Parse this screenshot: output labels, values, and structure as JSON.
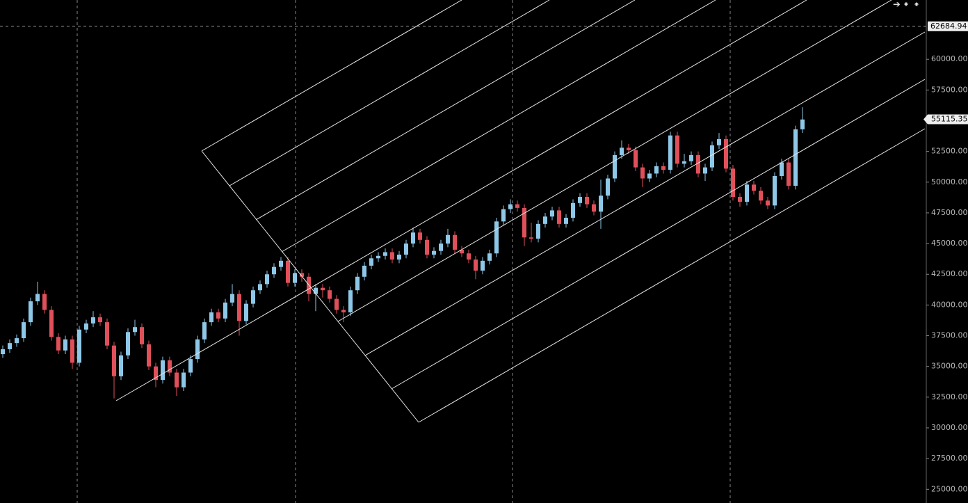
{
  "chart_data": {
    "type": "candlestick",
    "up_color": "#8ec8e8",
    "down_color": "#e0505a",
    "ylim": [
      23884,
      64825
    ],
    "yticks": [
      {
        "value": 25000,
        "label": "25000.00"
      },
      {
        "value": 27500,
        "label": "27500.00"
      },
      {
        "value": 30000,
        "label": "30000.00"
      },
      {
        "value": 32500,
        "label": "32500.00"
      },
      {
        "value": 35000,
        "label": "35000.00"
      },
      {
        "value": 37500,
        "label": "37500.00"
      },
      {
        "value": 40000,
        "label": "40000.00"
      },
      {
        "value": 42500,
        "label": "42500.00"
      },
      {
        "value": 45000,
        "label": "45000.00"
      },
      {
        "value": 47500,
        "label": "47500.00"
      },
      {
        "value": 50000,
        "label": "50000.00"
      },
      {
        "value": 52500,
        "label": "52500.00"
      },
      {
        "value": 55000,
        "label": "55000.00"
      },
      {
        "value": 57500,
        "label": "57500.00"
      },
      {
        "value": 60000,
        "label": "60000.00"
      }
    ],
    "crosshair_price": 62684.94,
    "last_price": 55115.35,
    "ohlc": [
      [
        36000,
        36700,
        35700,
        36400
      ],
      [
        36400,
        37200,
        36100,
        36900
      ],
      [
        36900,
        37600,
        36600,
        37300
      ],
      [
        37300,
        38900,
        37000,
        38600
      ],
      [
        38600,
        40600,
        38300,
        40300
      ],
      [
        40300,
        41900,
        40000,
        40900
      ],
      [
        40900,
        41200,
        39300,
        39600
      ],
      [
        39600,
        39900,
        37100,
        37400
      ],
      [
        37400,
        37700,
        36000,
        36300
      ],
      [
        36300,
        37500,
        36000,
        37200
      ],
      [
        37200,
        37500,
        34800,
        35300
      ],
      [
        35300,
        38300,
        35000,
        38000
      ],
      [
        38000,
        38800,
        37700,
        38500
      ],
      [
        38500,
        39500,
        38200,
        39000
      ],
      [
        39000,
        39300,
        38300,
        38600
      ],
      [
        38600,
        38900,
        36400,
        36700
      ],
      [
        36700,
        37000,
        32400,
        34200
      ],
      [
        34200,
        36200,
        33900,
        35900
      ],
      [
        35900,
        38100,
        35600,
        37800
      ],
      [
        37800,
        38800,
        37500,
        38200
      ],
      [
        38200,
        38500,
        36500,
        36800
      ],
      [
        36800,
        37100,
        34700,
        35000
      ],
      [
        35000,
        35300,
        33300,
        33900
      ],
      [
        33900,
        35800,
        33600,
        35500
      ],
      [
        35500,
        35800,
        34200,
        34500
      ],
      [
        34500,
        34800,
        32600,
        33300
      ],
      [
        33300,
        34800,
        33000,
        34500
      ],
      [
        34500,
        35900,
        34200,
        35600
      ],
      [
        35600,
        37500,
        35300,
        37200
      ],
      [
        37200,
        38900,
        36900,
        38600
      ],
      [
        38600,
        39700,
        38300,
        39400
      ],
      [
        39400,
        39700,
        38600,
        38900
      ],
      [
        38900,
        40500,
        38600,
        40200
      ],
      [
        40200,
        41700,
        39900,
        40900
      ],
      [
        40900,
        41200,
        37500,
        38700
      ],
      [
        38700,
        40400,
        38400,
        40100
      ],
      [
        40100,
        41500,
        39800,
        41200
      ],
      [
        41200,
        42000,
        40900,
        41700
      ],
      [
        41700,
        42800,
        41400,
        42500
      ],
      [
        42500,
        43400,
        42200,
        43100
      ],
      [
        43100,
        43900,
        42800,
        43600
      ],
      [
        43600,
        43900,
        41500,
        41800
      ],
      [
        41800,
        42900,
        41500,
        42600
      ],
      [
        42600,
        42900,
        41900,
        42300
      ],
      [
        42300,
        42600,
        40300,
        40900
      ],
      [
        40900,
        41700,
        39500,
        41400
      ],
      [
        41400,
        41700,
        40600,
        41200
      ],
      [
        41200,
        41500,
        40200,
        40500
      ],
      [
        40500,
        40800,
        39300,
        39600
      ],
      [
        39600,
        39900,
        38600,
        39400
      ],
      [
        39400,
        41500,
        39100,
        41200
      ],
      [
        41200,
        42600,
        40900,
        42300
      ],
      [
        42300,
        43500,
        42000,
        43200
      ],
      [
        43200,
        44100,
        42900,
        43800
      ],
      [
        43800,
        44300,
        43500,
        44000
      ],
      [
        44000,
        44600,
        43700,
        44300
      ],
      [
        44300,
        44600,
        43400,
        43700
      ],
      [
        43700,
        44400,
        43400,
        44100
      ],
      [
        44100,
        45300,
        43800,
        45000
      ],
      [
        45000,
        46300,
        44700,
        45900
      ],
      [
        45900,
        46200,
        45000,
        45300
      ],
      [
        45300,
        45600,
        43800,
        44100
      ],
      [
        44100,
        44700,
        43800,
        44400
      ],
      [
        44400,
        45300,
        44100,
        45000
      ],
      [
        45000,
        46200,
        44700,
        45700
      ],
      [
        45700,
        46000,
        44200,
        44500
      ],
      [
        44500,
        44800,
        43900,
        44200
      ],
      [
        44200,
        44500,
        43400,
        43700
      ],
      [
        43700,
        44000,
        42100,
        42800
      ],
      [
        42800,
        43900,
        42500,
        43600
      ],
      [
        43600,
        44500,
        43300,
        44200
      ],
      [
        44200,
        47100,
        43900,
        46800
      ],
      [
        46800,
        48100,
        46500,
        47800
      ],
      [
        47800,
        48600,
        47500,
        48200
      ],
      [
        48200,
        48500,
        47600,
        47900
      ],
      [
        47900,
        48200,
        44800,
        45500
      ],
      [
        45500,
        46700,
        45100,
        45400
      ],
      [
        45400,
        46900,
        45100,
        46600
      ],
      [
        46600,
        47500,
        46300,
        47200
      ],
      [
        47200,
        48000,
        46900,
        47700
      ],
      [
        47700,
        48000,
        46300,
        46600
      ],
      [
        46600,
        47400,
        46300,
        47100
      ],
      [
        47100,
        48600,
        46800,
        48300
      ],
      [
        48300,
        49100,
        48000,
        48800
      ],
      [
        48800,
        49100,
        47900,
        48200
      ],
      [
        48200,
        48500,
        47300,
        47600
      ],
      [
        47600,
        50200,
        46200,
        48900
      ],
      [
        48900,
        50600,
        48600,
        50300
      ],
      [
        50300,
        52500,
        50000,
        52200
      ],
      [
        52200,
        53400,
        51900,
        52800
      ],
      [
        52800,
        53100,
        52300,
        52600
      ],
      [
        52600,
        52900,
        50900,
        51200
      ],
      [
        51200,
        51500,
        49600,
        50300
      ],
      [
        50300,
        51000,
        50000,
        50700
      ],
      [
        50700,
        51600,
        50400,
        51300
      ],
      [
        51300,
        51600,
        50700,
        51000
      ],
      [
        51000,
        54100,
        50700,
        53800
      ],
      [
        53800,
        54100,
        51200,
        51500
      ],
      [
        51500,
        52300,
        51200,
        51700
      ],
      [
        51700,
        52500,
        51400,
        52200
      ],
      [
        52200,
        52500,
        50400,
        50700
      ],
      [
        50700,
        51500,
        50100,
        51200
      ],
      [
        51200,
        53300,
        50900,
        53000
      ],
      [
        53000,
        54000,
        52700,
        53500
      ],
      [
        53500,
        53800,
        50800,
        51100
      ],
      [
        51100,
        51400,
        48500,
        48800
      ],
      [
        48800,
        49100,
        48000,
        48400
      ],
      [
        48400,
        50100,
        48100,
        49800
      ],
      [
        49800,
        50100,
        49000,
        49300
      ],
      [
        49300,
        49600,
        48200,
        48500
      ],
      [
        48500,
        48800,
        47800,
        48100
      ],
      [
        48100,
        50800,
        47800,
        50500
      ],
      [
        50500,
        51900,
        50200,
        51600
      ],
      [
        51600,
        51900,
        49400,
        49700
      ],
      [
        49700,
        54600,
        49400,
        54300
      ],
      [
        54300,
        56100,
        54000,
        55100
      ]
    ]
  }
}
